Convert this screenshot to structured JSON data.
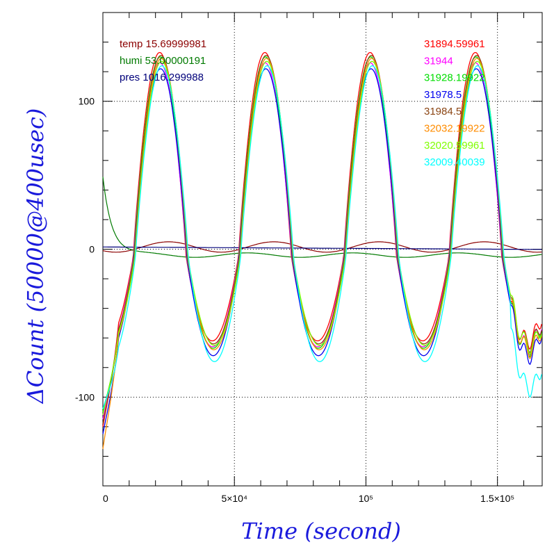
{
  "chart_data": {
    "type": "line",
    "xlabel": "Time (second)",
    "ylabel": "ΔCount (50000@400usec)",
    "xlim": [
      0,
      167000
    ],
    "ylim": [
      -160,
      160
    ],
    "x_tick_labels": [
      {
        "value": 0,
        "label": "0"
      },
      {
        "value": 50000,
        "label": "5×10⁴"
      },
      {
        "value": 100000,
        "label": "10⁵"
      },
      {
        "value": 150000,
        "label": "1.5×10⁵"
      }
    ],
    "y_tick_labels": [
      {
        "value": 100,
        "label": "100"
      },
      {
        "value": 0,
        "label": "0"
      },
      {
        "value": -100,
        "label": "-100"
      }
    ],
    "grid": true,
    "env_legend": [
      {
        "text": "temp 15.69999981",
        "color": "#8b0000"
      },
      {
        "text": "humi 53.00000191",
        "color": "#007a00"
      },
      {
        "text": "pres 1016.299988",
        "color": "#00007a"
      }
    ],
    "series": [
      {
        "name": "31894.59961",
        "color": "#ff0000",
        "amp_pos": 137,
        "amp_neg": -58,
        "start": -120
      },
      {
        "name": "31944",
        "color": "#ff00ff",
        "amp_pos": 130,
        "amp_neg": -62,
        "start": -115
      },
      {
        "name": "31928.19922",
        "color": "#00dd00",
        "amp_pos": 134,
        "amp_neg": -63,
        "start": -110
      },
      {
        "name": "31978.5",
        "color": "#0000ee",
        "amp_pos": 126,
        "amp_neg": -68,
        "start": -125
      },
      {
        "name": "31984.5",
        "color": "#8b4513",
        "amp_pos": 135,
        "amp_neg": -60,
        "start": -118
      },
      {
        "name": "32032.19922",
        "color": "#ff8c00",
        "amp_pos": 133,
        "amp_neg": -64,
        "start": -135
      },
      {
        "name": "32020.59961",
        "color": "#7fff00",
        "amp_pos": 131,
        "amp_neg": -61,
        "start": -112
      },
      {
        "name": "32009.40039",
        "color": "#00ffff",
        "amp_pos": 128,
        "amp_neg": -72,
        "start": -108
      }
    ]
  }
}
